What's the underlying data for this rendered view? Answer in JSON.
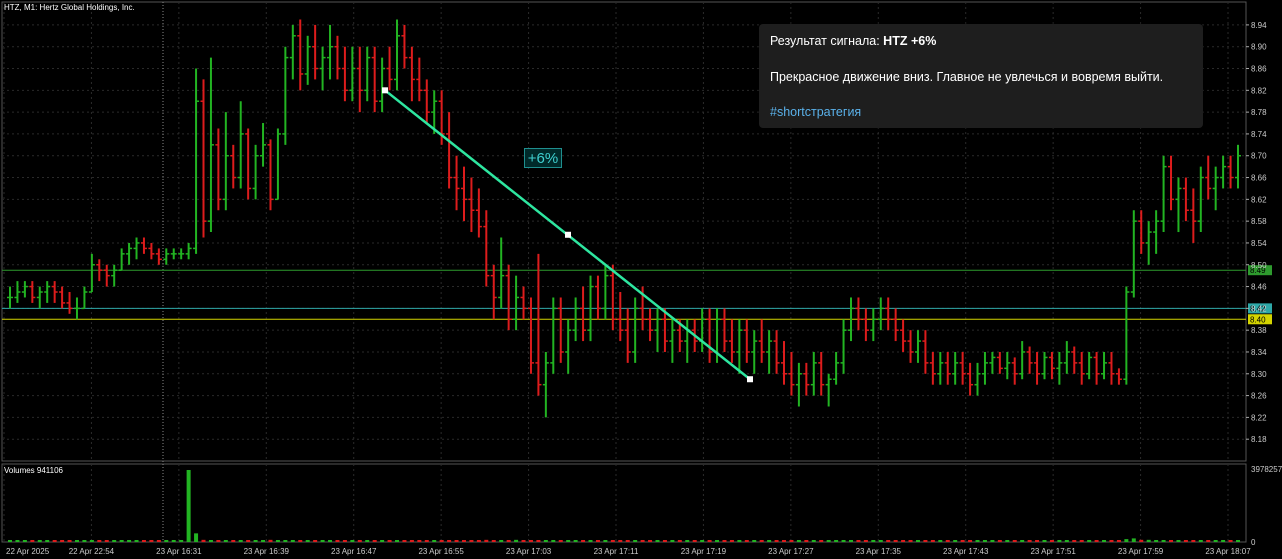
{
  "chart_header": {
    "title": "HTZ, M1:  Hertz Global Holdings, Inc.",
    "volume_label": "Volumes 941106"
  },
  "signal_card": {
    "result_prefix": "Результат сигнала: ",
    "result_value": "HTZ +6%",
    "message": "Прекрасное движение вниз. Главное не увлечься и вовремя выйти.",
    "hashtag": "#shortстратегия"
  },
  "trend_label": "+6%",
  "colors": {
    "background": "#000000",
    "grid": "#2a2a2a",
    "bull": "#22b422",
    "bear": "#dd1c1c",
    "trend_line": "#2ee6a0",
    "level_green": "#2e9a2e",
    "level_teal": "#2ea8a8",
    "level_yellow": "#d4d400"
  },
  "chart_data": {
    "type": "ohlc",
    "ylim": [
      8.14,
      8.96
    ],
    "price_ticks": [
      "8.94",
      "8.90",
      "8.86",
      "8.82",
      "8.78",
      "8.74",
      "8.70",
      "8.66",
      "8.62",
      "8.58",
      "8.54",
      "8.50",
      "8.46",
      "8.42",
      "8.38",
      "8.34",
      "8.30",
      "8.26",
      "8.22",
      "8.18"
    ],
    "time_labels": [
      "22 Apr 2025",
      "22 Apr 22:54",
      "23 Apr 16:31",
      "23 Apr 16:39",
      "23 Apr 16:47",
      "23 Apr 16:55",
      "23 Apr 17:03",
      "23 Apr 17:11",
      "23 Apr 17:19",
      "23 Apr 17:27",
      "23 Apr 17:35",
      "23 Apr 17:43",
      "23 Apr 17:51",
      "23 Apr 17:59",
      "23 Apr 18:07"
    ],
    "price_levels": [
      {
        "label": "8.49",
        "value": 8.49,
        "color": "#2e9a2e"
      },
      {
        "label": "8.42",
        "value": 8.42,
        "color": "#2ea8a8"
      },
      {
        "label": "8.40",
        "value": 8.4,
        "color": "#d4d400"
      }
    ],
    "trend_line": {
      "start": 8.82,
      "mid": 8.555,
      "end": 8.29
    },
    "volume_scale": {
      "max_label": "3978257",
      "zero_label": "0"
    },
    "bars": [
      [
        8.44,
        8.46,
        8.42,
        8.44
      ],
      [
        8.44,
        8.47,
        8.43,
        8.45
      ],
      [
        8.45,
        8.47,
        8.44,
        8.46
      ],
      [
        8.46,
        8.47,
        8.43,
        8.44
      ],
      [
        8.44,
        8.46,
        8.42,
        8.45
      ],
      [
        8.45,
        8.47,
        8.43,
        8.46
      ],
      [
        8.46,
        8.47,
        8.43,
        8.45
      ],
      [
        8.45,
        8.46,
        8.42,
        8.43
      ],
      [
        8.43,
        8.45,
        8.41,
        8.42
      ],
      [
        8.42,
        8.44,
        8.4,
        8.42
      ],
      [
        8.42,
        8.46,
        8.42,
        8.45
      ],
      [
        8.45,
        8.52,
        8.45,
        8.5
      ],
      [
        8.5,
        8.51,
        8.47,
        8.49
      ],
      [
        8.49,
        8.5,
        8.46,
        8.48
      ],
      [
        8.48,
        8.5,
        8.46,
        8.49
      ],
      [
        8.49,
        8.53,
        8.49,
        8.52
      ],
      [
        8.52,
        8.54,
        8.5,
        8.53
      ],
      [
        8.53,
        8.55,
        8.51,
        8.54
      ],
      [
        8.54,
        8.55,
        8.52,
        8.53
      ],
      [
        8.53,
        8.54,
        8.51,
        8.52
      ],
      [
        8.52,
        8.53,
        8.5,
        8.51
      ],
      [
        8.51,
        8.53,
        8.5,
        8.52
      ],
      [
        8.52,
        8.53,
        8.51,
        8.52
      ],
      [
        8.52,
        8.53,
        8.51,
        8.52
      ],
      [
        8.52,
        8.54,
        8.51,
        8.53
      ],
      [
        8.53,
        8.86,
        8.52,
        8.8
      ],
      [
        8.8,
        8.84,
        8.55,
        8.58
      ],
      [
        8.58,
        8.88,
        8.56,
        8.72
      ],
      [
        8.72,
        8.75,
        8.6,
        8.62
      ],
      [
        8.62,
        8.78,
        8.6,
        8.7
      ],
      [
        8.7,
        8.72,
        8.64,
        8.66
      ],
      [
        8.66,
        8.8,
        8.64,
        8.74
      ],
      [
        8.74,
        8.75,
        8.62,
        8.64
      ],
      [
        8.64,
        8.72,
        8.62,
        8.7
      ],
      [
        8.7,
        8.76,
        8.68,
        8.72
      ],
      [
        8.72,
        8.73,
        8.6,
        8.62
      ],
      [
        8.62,
        8.75,
        8.62,
        8.74
      ],
      [
        8.74,
        8.9,
        8.72,
        8.88
      ],
      [
        8.88,
        8.94,
        8.84,
        8.92
      ],
      [
        8.92,
        8.95,
        8.82,
        8.85
      ],
      [
        8.85,
        8.92,
        8.83,
        8.9
      ],
      [
        8.9,
        8.94,
        8.84,
        8.86
      ],
      [
        8.86,
        8.9,
        8.82,
        8.88
      ],
      [
        8.88,
        8.94,
        8.84,
        8.9
      ],
      [
        8.9,
        8.92,
        8.84,
        8.86
      ],
      [
        8.86,
        8.9,
        8.8,
        8.82
      ],
      [
        8.82,
        8.9,
        8.8,
        8.86
      ],
      [
        8.86,
        8.9,
        8.78,
        8.82
      ],
      [
        8.82,
        8.9,
        8.8,
        8.88
      ],
      [
        8.88,
        8.9,
        8.78,
        8.8
      ],
      [
        8.8,
        8.88,
        8.78,
        8.86
      ],
      [
        8.86,
        8.9,
        8.82,
        8.84
      ],
      [
        8.84,
        8.95,
        8.82,
        8.92
      ],
      [
        8.92,
        8.94,
        8.86,
        8.88
      ],
      [
        8.88,
        8.9,
        8.8,
        8.84
      ],
      [
        8.84,
        8.88,
        8.8,
        8.82
      ],
      [
        8.82,
        8.84,
        8.76,
        8.78
      ],
      [
        8.78,
        8.82,
        8.74,
        8.8
      ],
      [
        8.8,
        8.82,
        8.72,
        8.74
      ],
      [
        8.74,
        8.78,
        8.64,
        8.66
      ],
      [
        8.66,
        8.7,
        8.6,
        8.64
      ],
      [
        8.64,
        8.68,
        8.58,
        8.62
      ],
      [
        8.62,
        8.66,
        8.56,
        8.6
      ],
      [
        8.6,
        8.64,
        8.55,
        8.57
      ],
      [
        8.57,
        8.6,
        8.46,
        8.48
      ],
      [
        8.48,
        8.5,
        8.4,
        8.44
      ],
      [
        8.44,
        8.55,
        8.42,
        8.48
      ],
      [
        8.48,
        8.5,
        8.38,
        8.4
      ],
      [
        8.4,
        8.48,
        8.38,
        8.44
      ],
      [
        8.44,
        8.46,
        8.4,
        8.42
      ],
      [
        8.42,
        8.44,
        8.3,
        8.32
      ],
      [
        8.32,
        8.52,
        8.26,
        8.28
      ],
      [
        8.28,
        8.34,
        8.22,
        8.32
      ],
      [
        8.32,
        8.44,
        8.3,
        8.42
      ],
      [
        8.42,
        8.44,
        8.32,
        8.34
      ],
      [
        8.34,
        8.4,
        8.3,
        8.38
      ],
      [
        8.38,
        8.44,
        8.36,
        8.42
      ],
      [
        8.42,
        8.46,
        8.36,
        8.38
      ],
      [
        8.38,
        8.48,
        8.36,
        8.46
      ],
      [
        8.46,
        8.48,
        8.4,
        8.42
      ],
      [
        8.42,
        8.5,
        8.4,
        8.48
      ],
      [
        8.48,
        8.5,
        8.38,
        8.4
      ],
      [
        8.4,
        8.45,
        8.36,
        8.38
      ],
      [
        8.38,
        8.42,
        8.32,
        8.34
      ],
      [
        8.34,
        8.44,
        8.32,
        8.42
      ],
      [
        8.42,
        8.46,
        8.38,
        8.4
      ],
      [
        8.4,
        8.42,
        8.36,
        8.38
      ],
      [
        8.38,
        8.42,
        8.34,
        8.4
      ],
      [
        8.4,
        8.42,
        8.34,
        8.36
      ],
      [
        8.36,
        8.4,
        8.32,
        8.38
      ],
      [
        8.38,
        8.4,
        8.34,
        8.36
      ],
      [
        8.36,
        8.4,
        8.32,
        8.38
      ],
      [
        8.38,
        8.4,
        8.34,
        8.36
      ],
      [
        8.36,
        8.42,
        8.34,
        8.4
      ],
      [
        8.4,
        8.42,
        8.32,
        8.34
      ],
      [
        8.34,
        8.42,
        8.32,
        8.4
      ],
      [
        8.4,
        8.42,
        8.34,
        8.36
      ],
      [
        8.36,
        8.4,
        8.32,
        8.34
      ],
      [
        8.34,
        8.4,
        8.3,
        8.38
      ],
      [
        8.38,
        8.4,
        8.32,
        8.34
      ],
      [
        8.34,
        8.38,
        8.3,
        8.36
      ],
      [
        8.36,
        8.4,
        8.32,
        8.34
      ],
      [
        8.34,
        8.38,
        8.3,
        8.36
      ],
      [
        8.36,
        8.38,
        8.3,
        8.32
      ],
      [
        8.32,
        8.36,
        8.28,
        8.3
      ],
      [
        8.3,
        8.34,
        8.26,
        8.28
      ],
      [
        8.28,
        8.32,
        8.24,
        8.3
      ],
      [
        8.3,
        8.32,
        8.26,
        8.28
      ],
      [
        8.28,
        8.34,
        8.26,
        8.32
      ],
      [
        8.32,
        8.34,
        8.26,
        8.28
      ],
      [
        8.28,
        8.3,
        8.24,
        8.29
      ],
      [
        8.29,
        8.34,
        8.28,
        8.32
      ],
      [
        8.32,
        8.4,
        8.3,
        8.38
      ],
      [
        8.38,
        8.44,
        8.36,
        8.42
      ],
      [
        8.42,
        8.44,
        8.38,
        8.4
      ],
      [
        8.4,
        8.42,
        8.36,
        8.38
      ],
      [
        8.38,
        8.42,
        8.36,
        8.4
      ],
      [
        8.4,
        8.44,
        8.38,
        8.42
      ],
      [
        8.42,
        8.44,
        8.38,
        8.4
      ],
      [
        8.4,
        8.42,
        8.36,
        8.38
      ],
      [
        8.38,
        8.4,
        8.34,
        8.36
      ],
      [
        8.36,
        8.38,
        8.32,
        8.34
      ],
      [
        8.34,
        8.38,
        8.32,
        8.36
      ],
      [
        8.36,
        8.38,
        8.3,
        8.32
      ],
      [
        8.32,
        8.34,
        8.28,
        8.3
      ],
      [
        8.3,
        8.34,
        8.28,
        8.32
      ],
      [
        8.32,
        8.34,
        8.28,
        8.3
      ],
      [
        8.3,
        8.34,
        8.28,
        8.32
      ],
      [
        8.32,
        8.34,
        8.28,
        8.3
      ],
      [
        8.3,
        8.32,
        8.26,
        8.28
      ],
      [
        8.28,
        8.32,
        8.26,
        8.3
      ],
      [
        8.3,
        8.34,
        8.28,
        8.32
      ],
      [
        8.32,
        8.34,
        8.3,
        8.33
      ],
      [
        8.33,
        8.34,
        8.3,
        8.31
      ],
      [
        8.31,
        8.34,
        8.29,
        8.32
      ],
      [
        8.32,
        8.33,
        8.28,
        8.3
      ],
      [
        8.3,
        8.36,
        8.29,
        8.34
      ],
      [
        8.34,
        8.35,
        8.3,
        8.32
      ],
      [
        8.32,
        8.34,
        8.28,
        8.3
      ],
      [
        8.3,
        8.34,
        8.29,
        8.33
      ],
      [
        8.33,
        8.34,
        8.29,
        8.31
      ],
      [
        8.31,
        8.34,
        8.28,
        8.32
      ],
      [
        8.32,
        8.36,
        8.3,
        8.34
      ],
      [
        8.34,
        8.35,
        8.3,
        8.32
      ],
      [
        8.32,
        8.34,
        8.28,
        8.3
      ],
      [
        8.3,
        8.34,
        8.29,
        8.33
      ],
      [
        8.33,
        8.34,
        8.28,
        8.3
      ],
      [
        8.3,
        8.34,
        8.29,
        8.32
      ],
      [
        8.32,
        8.34,
        8.28,
        8.3
      ],
      [
        8.3,
        8.31,
        8.28,
        8.29
      ],
      [
        8.29,
        8.46,
        8.28,
        8.45
      ],
      [
        8.45,
        8.6,
        8.44,
        8.58
      ],
      [
        8.58,
        8.6,
        8.52,
        8.54
      ],
      [
        8.54,
        8.58,
        8.5,
        8.56
      ],
      [
        8.56,
        8.6,
        8.52,
        8.58
      ],
      [
        8.58,
        8.7,
        8.56,
        8.68
      ],
      [
        8.68,
        8.7,
        8.6,
        8.62
      ],
      [
        8.62,
        8.66,
        8.56,
        8.64
      ],
      [
        8.64,
        8.66,
        8.58,
        8.6
      ],
      [
        8.6,
        8.64,
        8.54,
        8.58
      ],
      [
        8.58,
        8.68,
        8.56,
        8.66
      ],
      [
        8.66,
        8.7,
        8.62,
        8.64
      ],
      [
        8.64,
        8.68,
        8.6,
        8.66
      ],
      [
        8.66,
        8.7,
        8.64,
        8.68
      ],
      [
        8.68,
        8.7,
        8.64,
        8.66
      ],
      [
        8.66,
        8.72,
        8.64,
        8.7
      ]
    ],
    "volumes": [
      0.01,
      0.01,
      0.01,
      0.01,
      0.01,
      0.01,
      0.01,
      0.01,
      0.01,
      0.01,
      0.01,
      0.01,
      0.01,
      0.01,
      0.01,
      0.01,
      0.01,
      0.01,
      0.01,
      0.01,
      0.01,
      0.01,
      0.01,
      0.01,
      1.0,
      0.12,
      0.03,
      0.02,
      0.02,
      0.02,
      0.02,
      0.02,
      0.02,
      0.02,
      0.02,
      0.03,
      0.02,
      0.02,
      0.02,
      0.02,
      0.02,
      0.02,
      0.02,
      0.02,
      0.02,
      0.02,
      0.02,
      0.02,
      0.02,
      0.02,
      0.02,
      0.02,
      0.02,
      0.02,
      0.02,
      0.02,
      0.02,
      0.02,
      0.02,
      0.02,
      0.02,
      0.02,
      0.02,
      0.02,
      0.03,
      0.02,
      0.02,
      0.02,
      0.03,
      0.02,
      0.02,
      0.02,
      0.02,
      0.02,
      0.02,
      0.02,
      0.02,
      0.02,
      0.02,
      0.02,
      0.02,
      0.02,
      0.02,
      0.02,
      0.02,
      0.02,
      0.02,
      0.02,
      0.02,
      0.02,
      0.02,
      0.02,
      0.02,
      0.02,
      0.02,
      0.02,
      0.02,
      0.02,
      0.02,
      0.02,
      0.02,
      0.02,
      0.02,
      0.02,
      0.02,
      0.02,
      0.02,
      0.02,
      0.02,
      0.02,
      0.02,
      0.02,
      0.02,
      0.02,
      0.02,
      0.02,
      0.02,
      0.02,
      0.02,
      0.02,
      0.02,
      0.02,
      0.02,
      0.02,
      0.02,
      0.02,
      0.02,
      0.02,
      0.02,
      0.02,
      0.02,
      0.02,
      0.02,
      0.02,
      0.02,
      0.02,
      0.02,
      0.02,
      0.02,
      0.02,
      0.02,
      0.02,
      0.02,
      0.02,
      0.02,
      0.02,
      0.02,
      0.02,
      0.02,
      0.02,
      0.04,
      0.05,
      0.03,
      0.03,
      0.02,
      0.02,
      0.02,
      0.02,
      0.02,
      0.02,
      0.02,
      0.02,
      0.02,
      0.02,
      0.02,
      0.02
    ]
  }
}
